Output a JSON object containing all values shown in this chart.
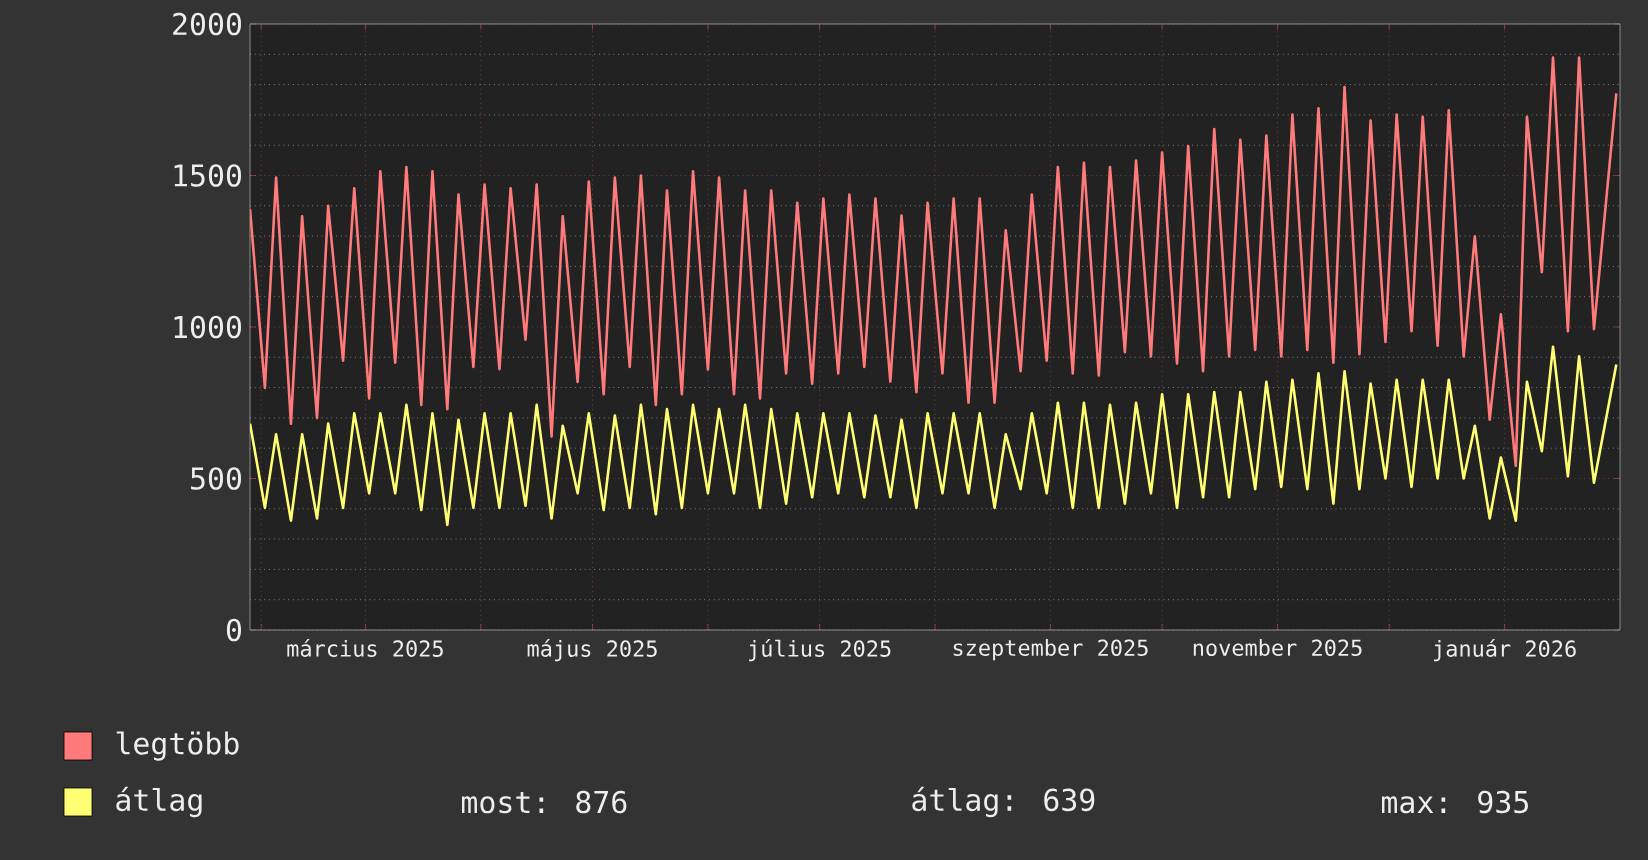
{
  "chart_data": {
    "type": "line",
    "x": [
      "2025-01-29",
      "2025-02-02",
      "2025-02-05",
      "2025-02-09",
      "2025-02-12",
      "2025-02-16",
      "2025-02-19",
      "2025-02-23",
      "2025-02-26",
      "2025-03-02",
      "2025-03-05",
      "2025-03-09",
      "2025-03-12",
      "2025-03-16",
      "2025-03-19",
      "2025-03-23",
      "2025-03-26",
      "2025-03-30",
      "2025-04-02",
      "2025-04-06",
      "2025-04-09",
      "2025-04-13",
      "2025-04-16",
      "2025-04-20",
      "2025-04-23",
      "2025-04-27",
      "2025-04-30",
      "2025-05-04",
      "2025-05-07",
      "2025-05-11",
      "2025-05-14",
      "2025-05-18",
      "2025-05-21",
      "2025-05-25",
      "2025-05-28",
      "2025-06-01",
      "2025-06-04",
      "2025-06-08",
      "2025-06-11",
      "2025-06-15",
      "2025-06-18",
      "2025-06-22",
      "2025-06-25",
      "2025-06-29",
      "2025-07-02",
      "2025-07-06",
      "2025-07-09",
      "2025-07-13",
      "2025-07-16",
      "2025-07-20",
      "2025-07-23",
      "2025-07-27",
      "2025-07-30",
      "2025-08-03",
      "2025-08-06",
      "2025-08-10",
      "2025-08-13",
      "2025-08-17",
      "2025-08-20",
      "2025-08-24",
      "2025-08-27",
      "2025-08-31",
      "2025-09-03",
      "2025-09-07",
      "2025-09-10",
      "2025-09-14",
      "2025-09-17",
      "2025-09-21",
      "2025-09-24",
      "2025-09-28",
      "2025-10-01",
      "2025-10-05",
      "2025-10-08",
      "2025-10-12",
      "2025-10-15",
      "2025-10-19",
      "2025-10-22",
      "2025-10-26",
      "2025-10-29",
      "2025-11-02",
      "2025-11-05",
      "2025-11-09",
      "2025-11-12",
      "2025-11-16",
      "2025-11-19",
      "2025-11-23",
      "2025-11-26",
      "2025-11-30",
      "2025-12-03",
      "2025-12-07",
      "2025-12-10",
      "2025-12-14",
      "2025-12-17",
      "2025-12-21",
      "2025-12-24",
      "2025-12-28",
      "2025-12-31",
      "2026-01-04",
      "2026-01-07",
      "2026-01-11",
      "2026-01-14",
      "2026-01-18",
      "2026-01-21",
      "2026-01-25",
      "2026-01-31"
    ],
    "series": [
      {
        "name": "legtöbb",
        "color": "#ff7b7b",
        "values": [
          1389,
          799,
          1493,
          681,
          1365,
          700,
          1400,
          889,
          1458,
          764,
          1514,
          882,
          1528,
          743,
          1514,
          729,
          1437,
          868,
          1470,
          861,
          1458,
          958,
          1470,
          639,
          1365,
          819,
          1480,
          778,
          1493,
          868,
          1500,
          743,
          1450,
          778,
          1514,
          860,
          1493,
          778,
          1450,
          764,
          1450,
          847,
          1410,
          813,
          1424,
          847,
          1437,
          868,
          1424,
          820,
          1368,
          785,
          1410,
          847,
          1424,
          750,
          1424,
          750,
          1319,
          854,
          1437,
          889,
          1528,
          847,
          1542,
          840,
          1528,
          917,
          1549,
          903,
          1576,
          880,
          1597,
          854,
          1653,
          903,
          1618,
          924,
          1632,
          903,
          1701,
          924,
          1722,
          882,
          1792,
          910,
          1681,
          951,
          1701,
          986,
          1694,
          938,
          1715,
          903,
          1299,
          694,
          1042,
          542,
          1694,
          1181,
          1889,
          986,
          1889,
          993,
          1771
        ]
      },
      {
        "name": "átlag",
        "color": "#ffff73",
        "values": [
          681,
          403,
          646,
          361,
          646,
          368,
          681,
          403,
          715,
          451,
          715,
          451,
          743,
          396,
          715,
          347,
          694,
          403,
          715,
          403,
          715,
          410,
          743,
          368,
          674,
          451,
          715,
          396,
          708,
          403,
          743,
          382,
          729,
          403,
          743,
          451,
          729,
          451,
          743,
          403,
          729,
          417,
          715,
          438,
          715,
          451,
          715,
          438,
          708,
          438,
          694,
          403,
          715,
          451,
          715,
          451,
          715,
          403,
          646,
          465,
          715,
          451,
          750,
          403,
          750,
          403,
          743,
          417,
          750,
          451,
          778,
          403,
          778,
          438,
          785,
          438,
          785,
          465,
          819,
          472,
          826,
          465,
          847,
          417,
          854,
          465,
          813,
          500,
          826,
          472,
          826,
          500,
          826,
          500,
          674,
          368,
          569,
          361,
          819,
          590,
          935,
          507,
          903,
          486,
          876
        ]
      }
    ],
    "xlim": [
      "2025-01-29",
      "2026-02-01"
    ],
    "xticks": [
      {
        "value": "2025-02-01",
        "label": null
      },
      {
        "value": "2025-03-01",
        "label": "március 2025"
      },
      {
        "value": "2025-04-01",
        "label": null
      },
      {
        "value": "2025-05-01",
        "label": "május 2025"
      },
      {
        "value": "2025-06-01",
        "label": null
      },
      {
        "value": "2025-07-01",
        "label": "július 2025"
      },
      {
        "value": "2025-08-01",
        "label": null
      },
      {
        "value": "2025-09-01",
        "label": "szeptember 2025"
      },
      {
        "value": "2025-10-01",
        "label": null
      },
      {
        "value": "2025-11-01",
        "label": "november 2025"
      },
      {
        "value": "2025-12-01",
        "label": null
      },
      {
        "value": "2026-01-01",
        "label": "január 2026"
      }
    ],
    "ylim": [
      0,
      2000
    ],
    "yticks": [
      0,
      500,
      1000,
      1500,
      2000
    ],
    "grid": true,
    "legend": "bottom",
    "annotations": [
      "most: 876",
      "átlag: 639",
      "max: 935"
    ]
  }
}
